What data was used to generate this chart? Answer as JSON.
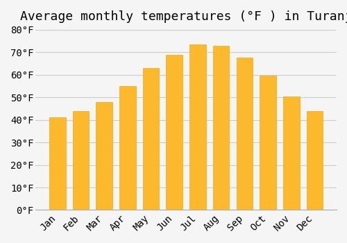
{
  "title": "Average monthly temperatures (°F ) in Turanj",
  "months": [
    "Jan",
    "Feb",
    "Mar",
    "Apr",
    "May",
    "Jun",
    "Jul",
    "Aug",
    "Sep",
    "Oct",
    "Nov",
    "Dec"
  ],
  "values": [
    41,
    44,
    48,
    55,
    63,
    69,
    73.5,
    73,
    67.5,
    59.5,
    50.5,
    44
  ],
  "bar_color_main": "#FDB92E",
  "bar_color_edge": "#F5A800",
  "background_color": "#F5F5F5",
  "ylim": [
    0,
    80
  ],
  "yticks": [
    0,
    10,
    20,
    30,
    40,
    50,
    60,
    70,
    80
  ],
  "title_fontsize": 13,
  "tick_fontsize": 10,
  "grid_color": "#CCCCCC"
}
